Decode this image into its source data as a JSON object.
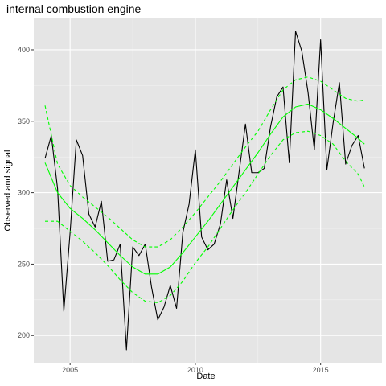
{
  "chart_data": {
    "type": "line",
    "title": "internal combustion engine",
    "xlabel": "Date",
    "ylabel": "Observed and signal",
    "x_ticks": [
      2005,
      2010,
      2015
    ],
    "y_ticks": [
      200,
      250,
      300,
      350,
      400
    ],
    "xlim": [
      2003.55,
      2017.45
    ],
    "ylim": [
      181,
      422.5
    ],
    "grid": true,
    "background": "#E5E5E5",
    "series": [
      {
        "style": "solid",
        "color": "#000000",
        "x": [
          2004.0,
          2004.25,
          2004.5,
          2004.75,
          2005.0,
          2005.25,
          2005.5,
          2005.75,
          2006.0,
          2006.25,
          2006.5,
          2006.75,
          2007.0,
          2007.25,
          2007.5,
          2007.75,
          2008.0,
          2008.25,
          2008.5,
          2008.75,
          2009.0,
          2009.25,
          2009.5,
          2009.75,
          2010.0,
          2010.25,
          2010.5,
          2010.75,
          2011.0,
          2011.25,
          2011.5,
          2011.75,
          2012.0,
          2012.25,
          2012.5,
          2012.75,
          2013.0,
          2013.25,
          2013.5,
          2013.75,
          2014.0,
          2014.25,
          2014.5,
          2014.75,
          2015.0,
          2015.25,
          2015.5,
          2015.75,
          2016.0,
          2016.25,
          2016.5,
          2016.75
        ],
        "y": [
          324,
          340,
          303,
          217,
          272,
          337,
          326,
          285,
          276,
          294,
          252,
          253,
          264,
          190,
          262,
          256,
          264,
          234,
          211,
          220,
          235,
          219,
          272,
          292,
          330,
          269,
          260,
          264,
          278,
          309,
          282,
          315,
          348,
          314,
          314,
          317,
          346,
          367,
          374,
          321,
          413,
          399,
          370,
          330,
          407,
          316,
          349,
          377,
          320,
          333,
          340,
          317
        ]
      },
      {
        "style": "solid",
        "color": "#00FF00",
        "x": [
          2004.0,
          2004.5,
          2005.0,
          2005.5,
          2006.0,
          2006.5,
          2007.0,
          2007.5,
          2008.0,
          2008.5,
          2009.0,
          2009.5,
          2010.0,
          2010.5,
          2011.0,
          2011.5,
          2012.0,
          2012.5,
          2013.0,
          2013.5,
          2014.0,
          2014.5,
          2015.0,
          2015.5,
          2016.0,
          2016.5,
          2016.75
        ],
        "y": [
          321,
          300,
          289,
          282,
          274,
          265,
          256,
          248,
          243,
          243,
          248,
          258,
          269,
          280,
          292,
          304,
          316,
          328,
          341,
          353,
          360,
          362,
          358,
          352,
          345,
          338,
          334
        ]
      },
      {
        "style": "dashed",
        "color": "#00FF00",
        "x": [
          2004.0,
          2004.5,
          2005.0,
          2005.5,
          2006.0,
          2006.5,
          2007.0,
          2007.5,
          2008.0,
          2008.5,
          2009.0,
          2009.5,
          2010.0,
          2010.5,
          2011.0,
          2011.5,
          2012.0,
          2012.5,
          2013.0,
          2013.5,
          2014.0,
          2014.5,
          2015.0,
          2015.5,
          2016.0,
          2016.5,
          2016.75
        ],
        "y": [
          361,
          320,
          305,
          297,
          290,
          283,
          275,
          267,
          262,
          262,
          267,
          276,
          286,
          297,
          308,
          320,
          332,
          343,
          358,
          372,
          379,
          381,
          378,
          372,
          366,
          364,
          365
        ]
      },
      {
        "style": "dashed",
        "color": "#00FF00",
        "x": [
          2004.0,
          2004.5,
          2005.0,
          2005.5,
          2006.0,
          2006.5,
          2007.0,
          2007.5,
          2008.0,
          2008.5,
          2009.0,
          2009.5,
          2010.0,
          2010.5,
          2011.0,
          2011.5,
          2012.0,
          2012.5,
          2013.0,
          2013.5,
          2014.0,
          2014.5,
          2015.0,
          2015.5,
          2016.0,
          2016.5,
          2016.75
        ],
        "y": [
          280,
          280,
          273,
          266,
          258,
          249,
          239,
          230,
          224,
          223,
          228,
          238,
          251,
          262,
          275,
          288,
          300,
          313,
          326,
          337,
          342,
          343,
          340,
          334,
          322,
          313,
          304
        ]
      }
    ]
  }
}
